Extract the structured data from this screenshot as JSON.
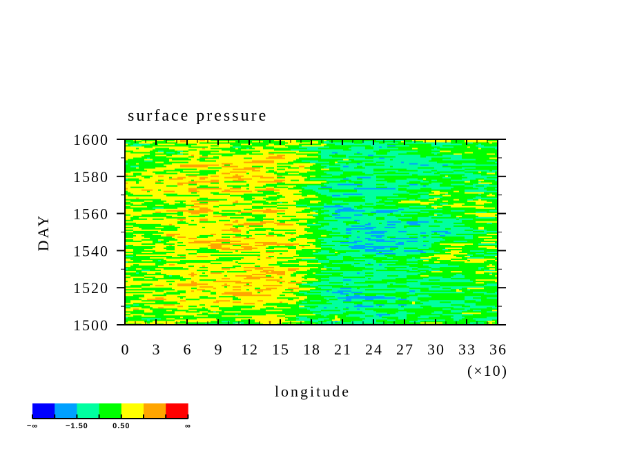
{
  "chart_data": {
    "type": "heatmap",
    "title": "surface pressure",
    "xlabel": "longitude",
    "ylabel": "DAY",
    "x_multiplier_label": "(×10)",
    "xlim": [
      0,
      360
    ],
    "ylim": [
      1500,
      1600
    ],
    "x_tick_values": [
      0,
      30,
      60,
      90,
      120,
      150,
      180,
      210,
      240,
      270,
      300,
      330,
      360
    ],
    "x_tick_labels": [
      "0",
      "3",
      "6",
      "9",
      "12",
      "15",
      "18",
      "21",
      "24",
      "27",
      "30",
      "33",
      "36"
    ],
    "x_minor_step": 10,
    "y_tick_values": [
      1500,
      1520,
      1540,
      1560,
      1580,
      1600
    ],
    "y_tick_labels": [
      "1500",
      "1520",
      "1540",
      "1560",
      "1580",
      "1600"
    ],
    "y_minor_step": 10,
    "colorbar": {
      "levels": [
        -2.5,
        -1.5,
        -0.5,
        0.5,
        1.5,
        2.5
      ],
      "colors": [
        "#0000ff",
        "#00a0ff",
        "#00ffa0",
        "#00ff00",
        "#ffff00",
        "#ffa500",
        "#ff0000"
      ],
      "labels": [
        "−∞",
        "−1.50",
        "0.50",
        "∞"
      ]
    },
    "field_description_note": "coarse mean anomaly, rows = day bins 1500-1600 step 10, cols = longitude bins 0-360 step 30",
    "field": [
      [
        0.2,
        0.4,
        0.4,
        0.3,
        0.5,
        0.3,
        -0.3,
        -0.5,
        -0.4,
        -0.3,
        -0.2,
        -0.1
      ],
      [
        0.6,
        1.0,
        1.2,
        0.9,
        1.1,
        0.6,
        -0.8,
        -1.2,
        -1.0,
        -0.6,
        -0.4,
        -0.2
      ],
      [
        0.4,
        0.6,
        0.8,
        0.8,
        1.2,
        1.0,
        -0.6,
        -0.9,
        -0.6,
        -0.3,
        0.0,
        0.1
      ],
      [
        0.2,
        0.5,
        0.9,
        0.7,
        0.8,
        0.4,
        -0.3,
        -0.5,
        -0.4,
        0.0,
        0.2,
        0.3
      ],
      [
        0.5,
        0.7,
        1.0,
        1.2,
        1.3,
        0.8,
        -0.6,
        -1.4,
        -1.6,
        -1.1,
        -0.3,
        0.2
      ],
      [
        0.6,
        0.8,
        1.0,
        1.3,
        1.2,
        0.6,
        -0.5,
        -1.2,
        -1.3,
        -1.0,
        -0.6,
        -0.4
      ],
      [
        0.5,
        0.7,
        0.6,
        0.5,
        0.6,
        0.3,
        -0.5,
        -0.8,
        -0.4,
        0.2,
        0.3,
        0.5
      ],
      [
        0.8,
        0.9,
        1.0,
        1.2,
        1.0,
        0.6,
        -0.9,
        -1.1,
        -0.8,
        -0.5,
        -0.4,
        -0.3
      ],
      [
        0.3,
        0.6,
        1.0,
        1.2,
        1.2,
        0.8,
        -0.4,
        -0.9,
        -1.0,
        -0.8,
        -0.5,
        -0.3
      ],
      [
        0.1,
        0.3,
        0.5,
        0.5,
        0.4,
        0.3,
        -0.3,
        -0.6,
        -0.5,
        -0.2,
        0.0,
        0.2
      ]
    ]
  }
}
